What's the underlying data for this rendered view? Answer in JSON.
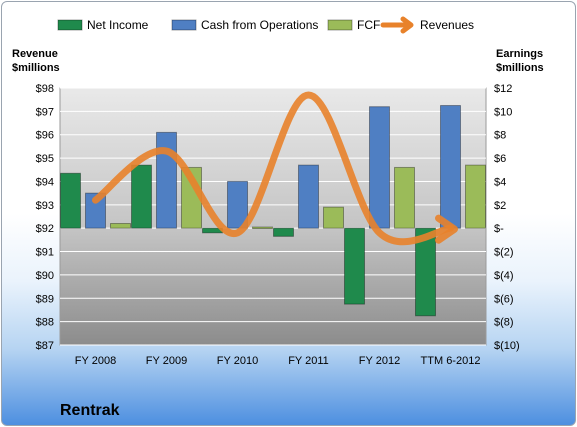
{
  "chart_data": {
    "type": "bar",
    "company": "Rentrak",
    "categories": [
      "FY 2008",
      "FY 2009",
      "FY 2010",
      "FY 2011",
      "FY 2012",
      "TTM 6-2012"
    ],
    "left_axis": {
      "title_line1": "Revenue",
      "title_line2": "$millions",
      "min": 87,
      "max": 98,
      "tick_labels": [
        "$87",
        "$88",
        "$89",
        "$90",
        "$91",
        "$92",
        "$93",
        "$94",
        "$95",
        "$96",
        "$97",
        "$98"
      ]
    },
    "right_axis": {
      "title_line1": "Earnings",
      "title_line2": "$millions",
      "min": -10,
      "max": 12,
      "tick_labels": [
        "$(10)",
        "$(8)",
        "$(6)",
        "$(4)",
        "$(2)",
        "$-",
        "$2",
        "$4",
        "$6",
        "$8",
        "$10",
        "$12"
      ]
    },
    "series": [
      {
        "name": "Net Income",
        "axis": "right",
        "kind": "bar",
        "color": "#1f8a4c",
        "values": [
          4.7,
          5.4,
          -0.4,
          -0.7,
          -6.5,
          -7.5
        ]
      },
      {
        "name": "Cash from Operations",
        "axis": "right",
        "kind": "bar",
        "color": "#4f7fc3",
        "values": [
          3.0,
          8.2,
          4.0,
          5.4,
          10.4,
          10.5
        ]
      },
      {
        "name": "FCF",
        "axis": "right",
        "kind": "bar",
        "color": "#9bbb59",
        "values": [
          0.4,
          5.2,
          0.1,
          1.8,
          5.2,
          5.4
        ]
      },
      {
        "name": "Revenues",
        "axis": "left",
        "kind": "line",
        "color": "#e8822b",
        "values": [
          93.2,
          95.3,
          91.8,
          97.7,
          91.8,
          92.0
        ]
      }
    ],
    "grid": true,
    "legend_position": "top"
  }
}
